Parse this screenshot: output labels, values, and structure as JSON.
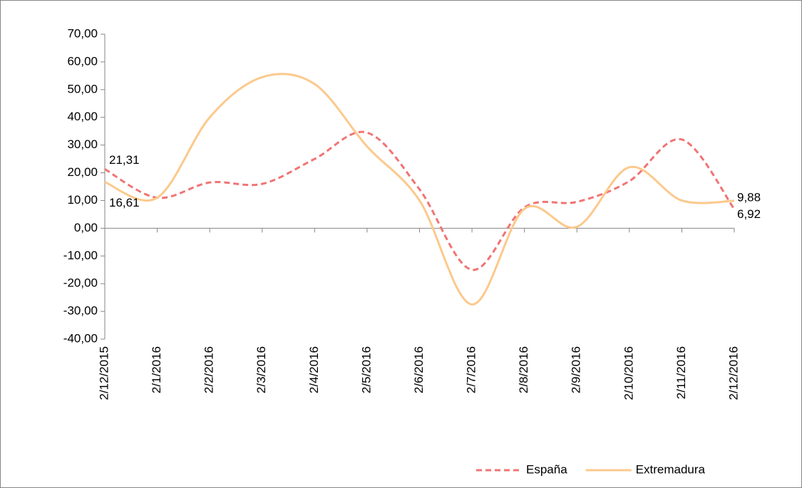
{
  "chart_data": {
    "type": "line",
    "categories": [
      "2/12/2015",
      "2/1/2016",
      "2/2/2016",
      "2/3/2016",
      "2/4/2016",
      "2/5/2016",
      "2/6/2016",
      "2/7/2016",
      "2/8/2016",
      "2/9/2016",
      "2/10/2016",
      "2/11/2016",
      "2/12/2016"
    ],
    "series": [
      {
        "name": "España",
        "color": "#f07474",
        "line_style": "dashed",
        "values": [
          21.31,
          11,
          16.5,
          16,
          25,
          34.5,
          14,
          -15,
          7.5,
          9.5,
          17,
          32,
          6.92
        ],
        "value_labels": [
          "21,31",
          null,
          null,
          null,
          null,
          null,
          null,
          null,
          null,
          null,
          null,
          null,
          "6,92"
        ]
      },
      {
        "name": "Extremadura",
        "color": "#fcc98d",
        "line_style": "solid",
        "values": [
          16.61,
          11,
          40,
          54.5,
          52,
          29.5,
          10,
          -27.5,
          7,
          0.5,
          22,
          10,
          9.88
        ],
        "value_labels": [
          "16,61",
          null,
          null,
          null,
          null,
          null,
          null,
          null,
          null,
          null,
          null,
          null,
          "9,88"
        ]
      }
    ],
    "ylim": [
      -40,
      70
    ],
    "yticks": [
      {
        "value": -40,
        "label": "-40,00"
      },
      {
        "value": -30,
        "label": "-30,00"
      },
      {
        "value": -20,
        "label": "-20,00"
      },
      {
        "value": -10,
        "label": "-10,00"
      },
      {
        "value": 0,
        "label": "0,00"
      },
      {
        "value": 10,
        "label": "10,00"
      },
      {
        "value": 20,
        "label": "20,00"
      },
      {
        "value": 30,
        "label": "30,00"
      },
      {
        "value": 40,
        "label": "40,00"
      },
      {
        "value": 50,
        "label": "50,00"
      },
      {
        "value": 60,
        "label": "60,00"
      },
      {
        "value": 70,
        "label": "70,00"
      }
    ],
    "grid": false,
    "smooth": true,
    "legend": "bottom"
  }
}
